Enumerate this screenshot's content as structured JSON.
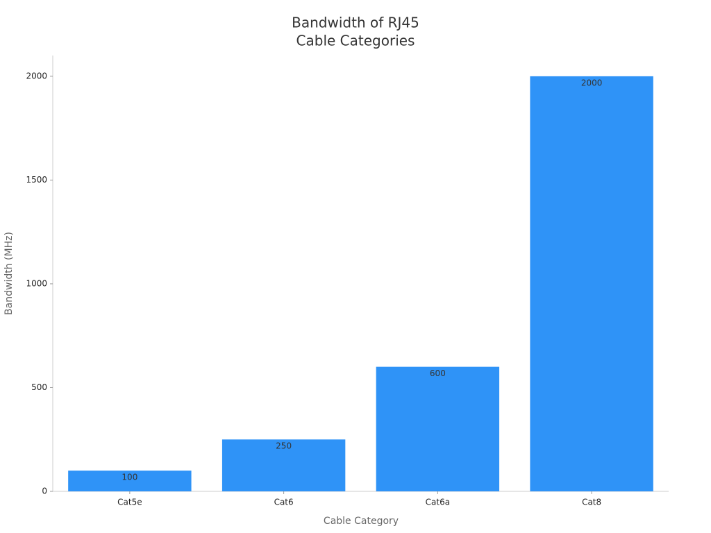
{
  "chart_data": {
    "type": "bar",
    "title": [
      "Bandwidth of RJ45",
      "Cable Categories"
    ],
    "x_label": "Cable Category",
    "y_label": "Bandwidth (MHz)",
    "categories": [
      "Cat5e",
      "Cat6",
      "Cat6a",
      "Cat8"
    ],
    "values": [
      100,
      250,
      600,
      2000
    ],
    "color": "#2f93f7",
    "ylim": [
      0,
      2100
    ],
    "yticks": [
      0,
      500,
      1000,
      1500,
      2000
    ],
    "grid": false
  }
}
